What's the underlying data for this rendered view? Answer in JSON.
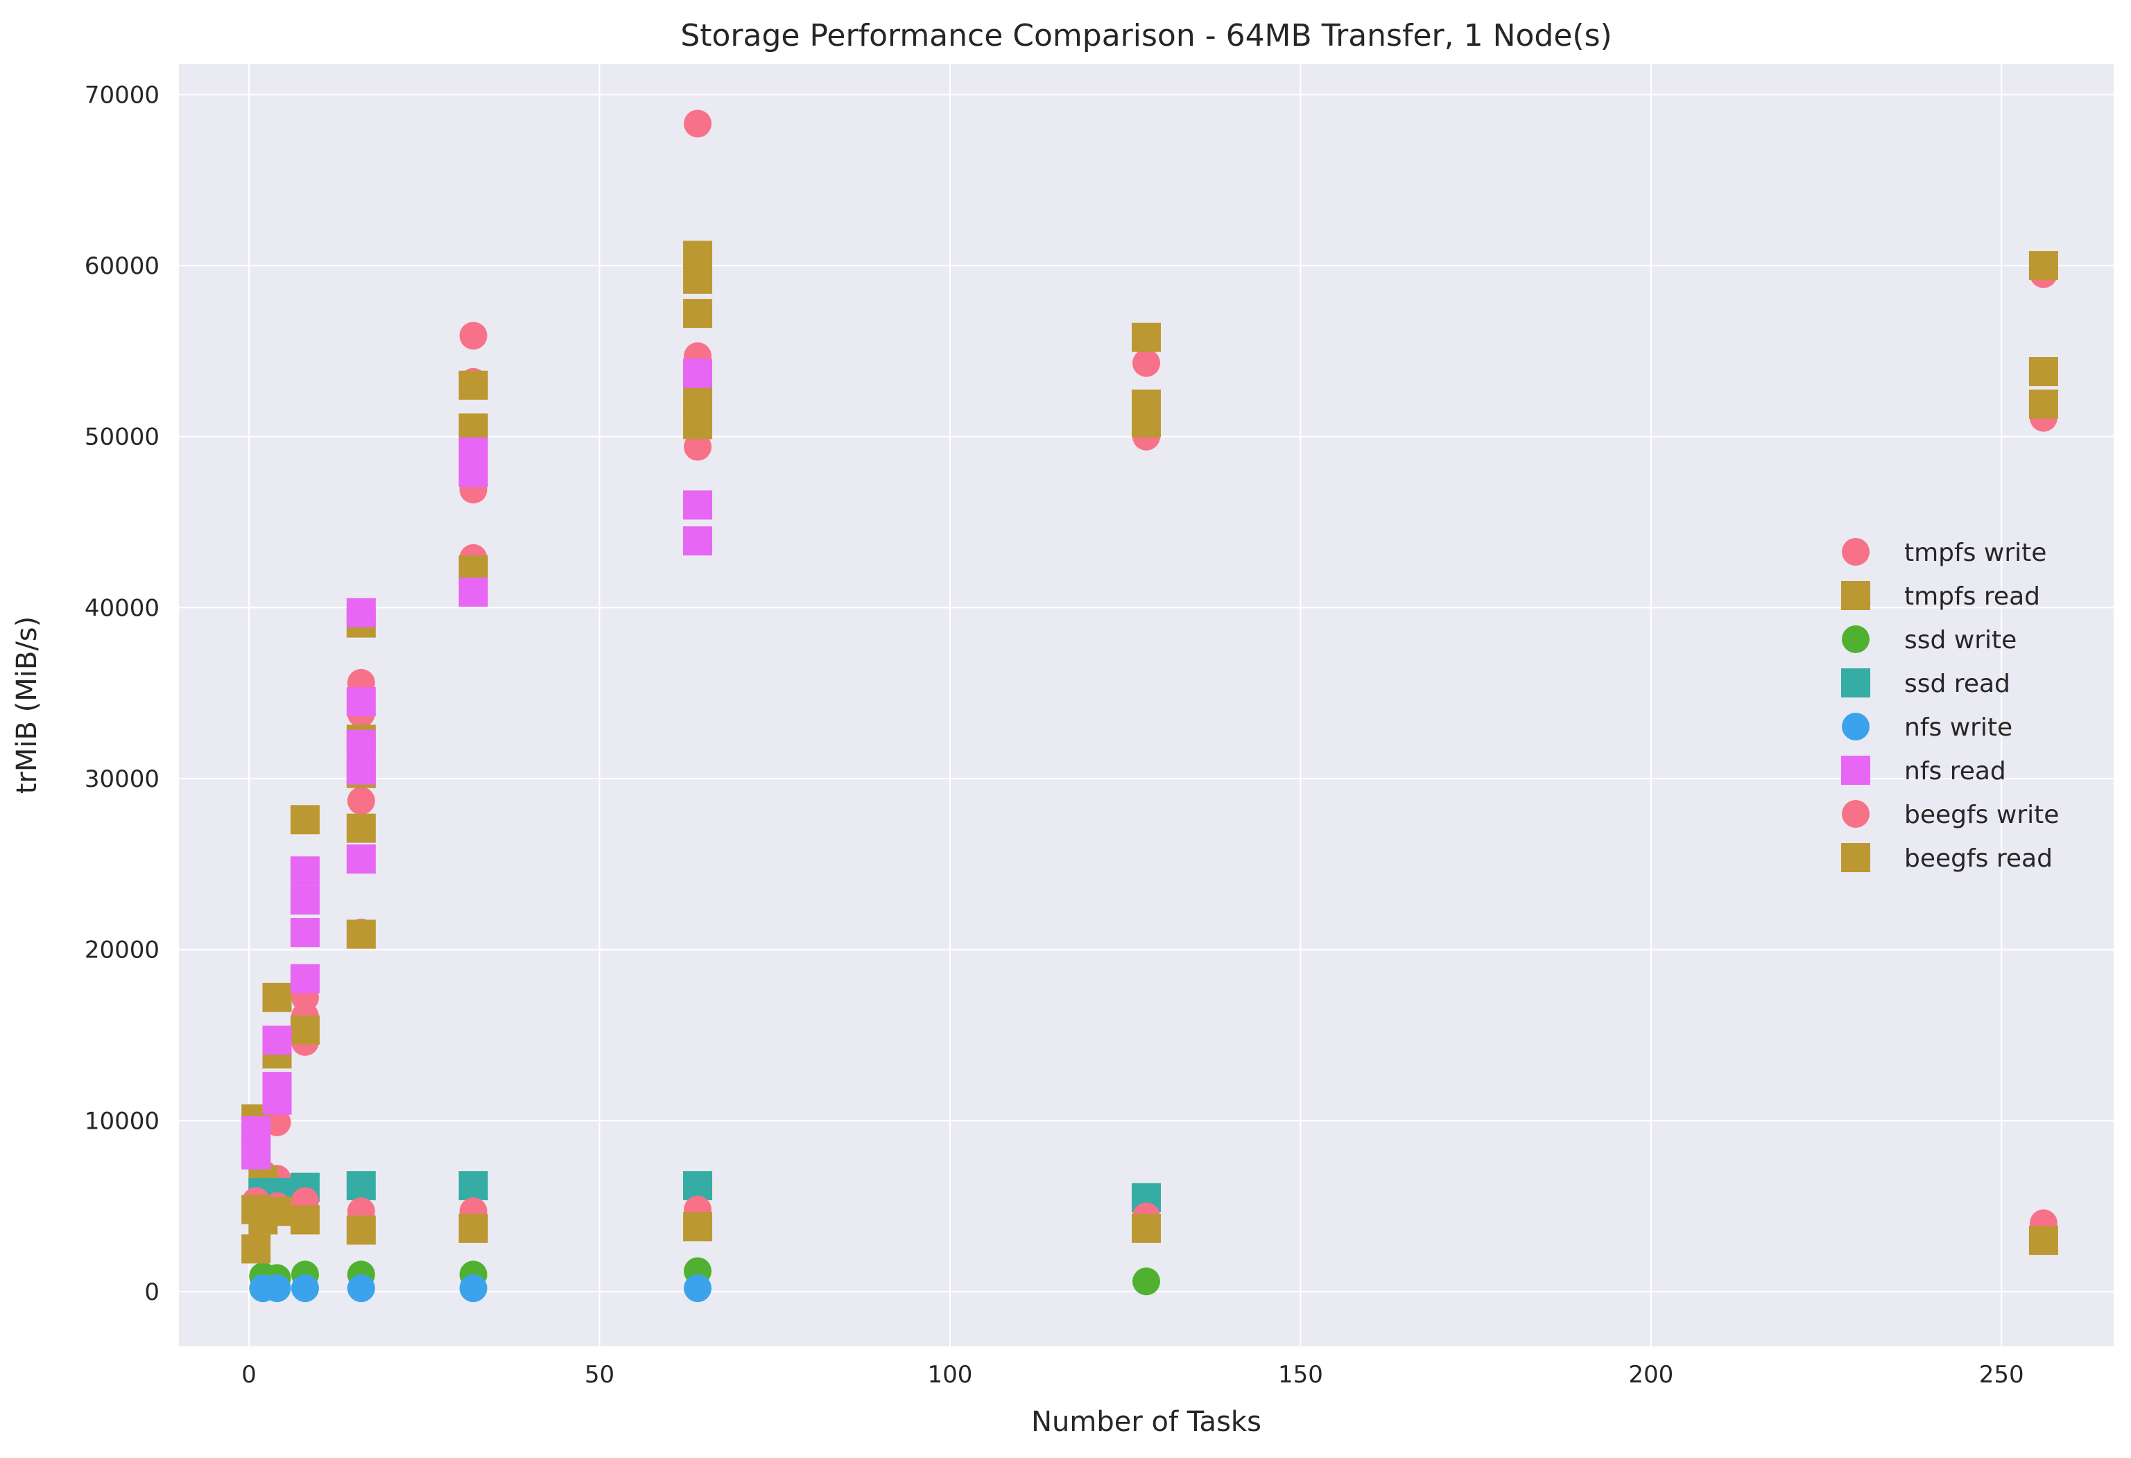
{
  "chart_data": {
    "type": "scatter",
    "title": "Storage Performance Comparison - 64MB Transfer, 1 Node(s)",
    "xlabel": "Number of Tasks",
    "ylabel": "trMiB (MiB/s)",
    "xlim": [
      -10,
      266
    ],
    "ylim": [
      -3200,
      71800
    ],
    "xticks": [
      0,
      50,
      100,
      150,
      200,
      250
    ],
    "yticks": [
      0,
      10000,
      20000,
      30000,
      40000,
      50000,
      60000,
      70000
    ],
    "grid": true,
    "legend_position": "right",
    "background": "#eaeaf2",
    "series": [
      {
        "name": "tmpfs write",
        "marker": "circle",
        "color": "#f77189",
        "points": [
          [
            1,
            9200
          ],
          [
            1,
            7800
          ],
          [
            2,
            6900
          ],
          [
            2,
            5600
          ],
          [
            4,
            9900
          ],
          [
            4,
            6600
          ],
          [
            4,
            5200
          ],
          [
            8,
            17200
          ],
          [
            8,
            16100
          ],
          [
            8,
            14600
          ],
          [
            16,
            35600
          ],
          [
            16,
            33800
          ],
          [
            16,
            28700
          ],
          [
            16,
            21000
          ],
          [
            32,
            55900
          ],
          [
            32,
            53200
          ],
          [
            32,
            46900
          ],
          [
            32,
            42900
          ],
          [
            64,
            68300
          ],
          [
            64,
            54700
          ],
          [
            64,
            52100
          ],
          [
            64,
            49400
          ],
          [
            128,
            54300
          ],
          [
            128,
            50000
          ],
          [
            256,
            59500
          ],
          [
            256,
            51100
          ]
        ]
      },
      {
        "name": "tmpfs read",
        "marker": "square",
        "color": "#bb9832",
        "points": [
          [
            1,
            10100
          ],
          [
            1,
            8200
          ],
          [
            2,
            6500
          ],
          [
            4,
            17200
          ],
          [
            4,
            13900
          ],
          [
            8,
            27600
          ],
          [
            8,
            15300
          ],
          [
            16,
            39100
          ],
          [
            16,
            32300
          ],
          [
            16,
            30300
          ],
          [
            16,
            27100
          ],
          [
            16,
            20900
          ],
          [
            32,
            53000
          ],
          [
            32,
            50500
          ],
          [
            32,
            48600
          ],
          [
            32,
            42200
          ],
          [
            64,
            60600
          ],
          [
            64,
            59200
          ],
          [
            64,
            57200
          ],
          [
            64,
            52100
          ],
          [
            64,
            50700
          ],
          [
            128,
            55800
          ],
          [
            128,
            51900
          ],
          [
            128,
            50800
          ],
          [
            256,
            60000
          ],
          [
            256,
            53800
          ],
          [
            256,
            51900
          ]
        ]
      },
      {
        "name": "ssd write",
        "marker": "circle",
        "color": "#50b131",
        "points": [
          [
            2,
            900
          ],
          [
            4,
            800
          ],
          [
            8,
            1000
          ],
          [
            16,
            1000
          ],
          [
            32,
            1000
          ],
          [
            64,
            1200
          ],
          [
            128,
            600
          ]
        ]
      },
      {
        "name": "ssd read",
        "marker": "square",
        "color": "#36ada4",
        "points": [
          [
            2,
            5800
          ],
          [
            4,
            5800
          ],
          [
            8,
            6100
          ],
          [
            16,
            6200
          ],
          [
            32,
            6200
          ],
          [
            64,
            6200
          ],
          [
            128,
            5500
          ]
        ]
      },
      {
        "name": "nfs write",
        "marker": "circle",
        "color": "#3ba3ec",
        "points": [
          [
            2,
            200
          ],
          [
            4,
            200
          ],
          [
            8,
            200
          ],
          [
            16,
            200
          ],
          [
            32,
            200
          ],
          [
            64,
            200
          ]
        ]
      },
      {
        "name": "nfs read",
        "marker": "square",
        "color": "#e866f4",
        "points": [
          [
            1,
            9400
          ],
          [
            1,
            8000
          ],
          [
            4,
            14700
          ],
          [
            4,
            12000
          ],
          [
            4,
            11200
          ],
          [
            8,
            24600
          ],
          [
            8,
            22900
          ],
          [
            8,
            21000
          ],
          [
            8,
            18300
          ],
          [
            16,
            39700
          ],
          [
            16,
            34500
          ],
          [
            16,
            32000
          ],
          [
            16,
            30500
          ],
          [
            16,
            25300
          ],
          [
            32,
            49100
          ],
          [
            32,
            47900
          ],
          [
            32,
            40900
          ],
          [
            64,
            53700
          ],
          [
            64,
            46000
          ],
          [
            64,
            43900
          ]
        ]
      },
      {
        "name": "beegfs write",
        "marker": "circle",
        "color": "#f77189",
        "points": [
          [
            1,
            5300
          ],
          [
            2,
            4200
          ],
          [
            4,
            5000
          ],
          [
            8,
            5300
          ],
          [
            16,
            4700
          ],
          [
            32,
            4700
          ],
          [
            64,
            4800
          ],
          [
            128,
            4400
          ],
          [
            256,
            4000
          ]
        ]
      },
      {
        "name": "beegfs read",
        "marker": "square",
        "color": "#bb9832",
        "points": [
          [
            1,
            4800
          ],
          [
            1,
            2500
          ],
          [
            2,
            4200
          ],
          [
            4,
            4700
          ],
          [
            8,
            4200
          ],
          [
            16,
            3600
          ],
          [
            32,
            3700
          ],
          [
            64,
            3800
          ],
          [
            128,
            3700
          ],
          [
            256,
            3000
          ]
        ]
      }
    ]
  }
}
